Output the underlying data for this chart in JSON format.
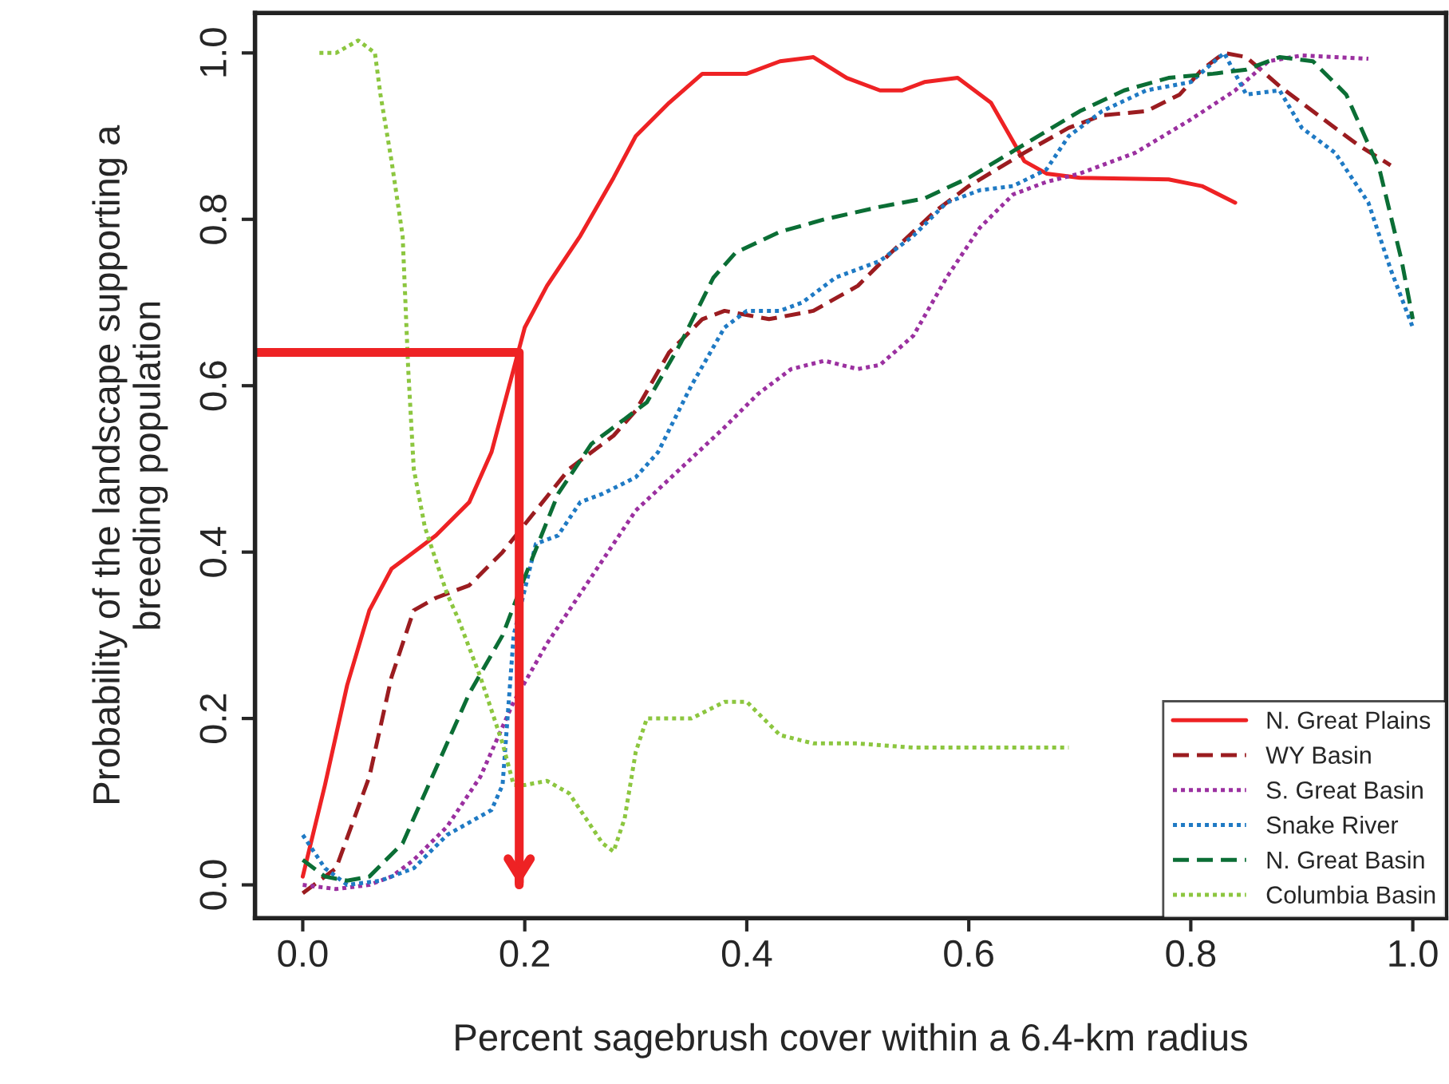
{
  "chart_data": {
    "type": "line",
    "xlabel": "Percent sagebrush cover within a 6.4-km radius",
    "ylabel": "Probability of the landscape supporting a\nbreeding population",
    "xlim": [
      -0.043,
      1.03
    ],
    "ylim": [
      -0.04,
      1.048
    ],
    "xticks": [
      {
        "value": 0,
        "label": "0.0"
      },
      {
        "value": 0.2,
        "label": "0.2"
      },
      {
        "value": 0.4,
        "label": "0.4"
      },
      {
        "value": 0.6,
        "label": "0.6"
      },
      {
        "value": 0.8,
        "label": "0.8"
      },
      {
        "value": 1,
        "label": "1.0"
      }
    ],
    "yticks": [
      {
        "value": 0,
        "label": "0.0"
      },
      {
        "value": 0.2,
        "label": "0.2"
      },
      {
        "value": 0.4,
        "label": "0.4"
      },
      {
        "value": 0.6,
        "label": "0.6"
      },
      {
        "value": 0.8,
        "label": "0.8"
      },
      {
        "value": 1,
        "label": "1.0"
      }
    ],
    "grid": false,
    "legend": "bottom right",
    "series": [
      {
        "name": "N. Great Plains",
        "color": "#ee2224",
        "line_style": "solid",
        "x": [
          0,
          0.02,
          0.04,
          0.06,
          0.08,
          0.12,
          0.15,
          0.17,
          0.19,
          0.2,
          0.22,
          0.25,
          0.28,
          0.3,
          0.33,
          0.36,
          0.38,
          0.4,
          0.43,
          0.46,
          0.49,
          0.52,
          0.54,
          0.56,
          0.59,
          0.62,
          0.65,
          0.67,
          0.7,
          0.78,
          0.81,
          0.84
        ],
        "values": [
          0.01,
          0.12,
          0.24,
          0.33,
          0.38,
          0.42,
          0.46,
          0.52,
          0.62,
          0.67,
          0.72,
          0.78,
          0.85,
          0.9,
          0.94,
          0.975,
          0.975,
          0.975,
          0.99,
          0.995,
          0.97,
          0.955,
          0.955,
          0.965,
          0.97,
          0.94,
          0.87,
          0.855,
          0.85,
          0.848,
          0.84,
          0.82
        ]
      },
      {
        "name": "WY Basin",
        "color": "#9b1c20",
        "line_style": "dashed",
        "x": [
          0,
          0.03,
          0.06,
          0.08,
          0.1,
          0.12,
          0.15,
          0.18,
          0.21,
          0.24,
          0.28,
          0.3,
          0.33,
          0.36,
          0.38,
          0.42,
          0.46,
          0.5,
          0.53,
          0.57,
          0.6,
          0.65,
          0.69,
          0.72,
          0.76,
          0.79,
          0.81,
          0.83,
          0.85,
          0.88,
          0.92,
          0.95,
          0.98
        ],
        "values": [
          -0.01,
          0.02,
          0.13,
          0.25,
          0.33,
          0.345,
          0.36,
          0.4,
          0.45,
          0.5,
          0.54,
          0.57,
          0.64,
          0.68,
          0.69,
          0.68,
          0.69,
          0.72,
          0.76,
          0.81,
          0.84,
          0.88,
          0.91,
          0.925,
          0.93,
          0.95,
          0.98,
          1.0,
          0.995,
          0.96,
          0.92,
          0.89,
          0.865
        ]
      },
      {
        "name": "S. Great Basin",
        "color": "#9b30a0",
        "line_style": "dotted",
        "x": [
          0,
          0.03,
          0.06,
          0.08,
          0.1,
          0.13,
          0.16,
          0.19,
          0.22,
          0.26,
          0.3,
          0.34,
          0.38,
          0.41,
          0.44,
          0.47,
          0.5,
          0.52,
          0.55,
          0.58,
          0.61,
          0.64,
          0.67,
          0.7,
          0.75,
          0.8,
          0.84,
          0.87,
          0.9,
          0.96
        ],
        "values": [
          0.0,
          -0.005,
          0.0,
          0.01,
          0.03,
          0.07,
          0.13,
          0.22,
          0.29,
          0.37,
          0.45,
          0.5,
          0.55,
          0.59,
          0.62,
          0.63,
          0.62,
          0.625,
          0.66,
          0.73,
          0.79,
          0.83,
          0.845,
          0.855,
          0.88,
          0.92,
          0.955,
          0.99,
          0.997,
          0.993
        ]
      },
      {
        "name": "Snake River",
        "color": "#1f7ac4",
        "line_style": "dotted",
        "x": [
          0,
          0.02,
          0.04,
          0.07,
          0.1,
          0.13,
          0.17,
          0.18,
          0.19,
          0.21,
          0.23,
          0.25,
          0.27,
          0.3,
          0.32,
          0.35,
          0.38,
          0.4,
          0.43,
          0.45,
          0.48,
          0.52,
          0.55,
          0.58,
          0.61,
          0.64,
          0.67,
          0.69,
          0.72,
          0.76,
          0.8,
          0.83,
          0.85,
          0.88,
          0.9,
          0.93,
          0.96,
          0.98,
          1.0
        ],
        "values": [
          0.06,
          0.02,
          0.0,
          0.005,
          0.02,
          0.06,
          0.09,
          0.12,
          0.3,
          0.41,
          0.42,
          0.46,
          0.47,
          0.49,
          0.52,
          0.6,
          0.67,
          0.69,
          0.69,
          0.7,
          0.73,
          0.75,
          0.78,
          0.82,
          0.835,
          0.84,
          0.86,
          0.9,
          0.93,
          0.955,
          0.965,
          1.0,
          0.95,
          0.955,
          0.91,
          0.88,
          0.82,
          0.74,
          0.67
        ]
      },
      {
        "name": "N. Great Basin",
        "color": "#0b6e35",
        "line_style": "dashed",
        "x": [
          0,
          0.02,
          0.04,
          0.06,
          0.09,
          0.12,
          0.15,
          0.18,
          0.2,
          0.23,
          0.26,
          0.29,
          0.31,
          0.34,
          0.37,
          0.39,
          0.43,
          0.47,
          0.52,
          0.56,
          0.6,
          0.65,
          0.7,
          0.74,
          0.78,
          0.82,
          0.85,
          0.88,
          0.91,
          0.94,
          0.97,
          0.99,
          1.0
        ],
        "values": [
          0.03,
          0.01,
          0.005,
          0.01,
          0.05,
          0.14,
          0.23,
          0.3,
          0.37,
          0.47,
          0.53,
          0.56,
          0.58,
          0.65,
          0.73,
          0.76,
          0.785,
          0.8,
          0.815,
          0.825,
          0.85,
          0.89,
          0.93,
          0.955,
          0.97,
          0.975,
          0.98,
          0.995,
          0.99,
          0.95,
          0.86,
          0.75,
          0.68
        ]
      },
      {
        "name": "Columbia Basin",
        "color": "#8cc63f",
        "line_style": "dotted",
        "x": [
          0.015,
          0.03,
          0.05,
          0.065,
          0.07,
          0.08,
          0.09,
          0.095,
          0.1,
          0.11,
          0.13,
          0.14,
          0.16,
          0.18,
          0.19,
          0.2,
          0.22,
          0.24,
          0.27,
          0.28,
          0.29,
          0.3,
          0.31,
          0.33,
          0.35,
          0.38,
          0.4,
          0.43,
          0.46,
          0.5,
          0.55,
          0.6,
          0.69
        ],
        "values": [
          1.0,
          1.0,
          1.015,
          1.0,
          0.95,
          0.87,
          0.78,
          0.62,
          0.5,
          0.43,
          0.35,
          0.32,
          0.25,
          0.17,
          0.12,
          0.12,
          0.125,
          0.11,
          0.05,
          0.04,
          0.08,
          0.16,
          0.2,
          0.2,
          0.2,
          0.22,
          0.22,
          0.18,
          0.17,
          0.17,
          0.165,
          0.165,
          0.165
        ]
      },
      {
        "color": "#ee2224",
        "line_style": "solid",
        "x": [
          -0.043,
          0.195,
          0.195
        ],
        "values": [
          0.64,
          0.64,
          0.0
        ]
      }
    ]
  }
}
